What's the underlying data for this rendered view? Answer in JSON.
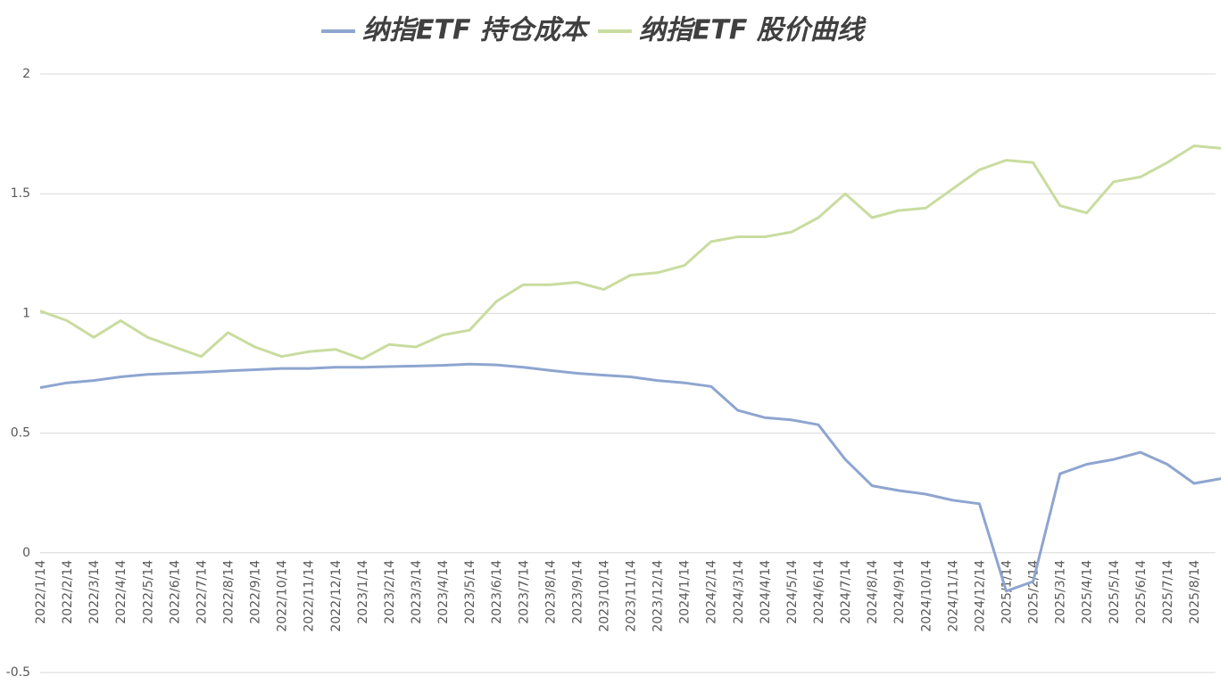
{
  "chart_data": {
    "type": "line",
    "categories": [
      "2022/1/14",
      "2022/2/14",
      "2022/3/14",
      "2022/4/14",
      "2022/5/14",
      "2022/6/14",
      "2022/7/14",
      "2022/8/14",
      "2022/9/14",
      "2022/10/14",
      "2022/11/14",
      "2022/12/14",
      "2023/1/14",
      "2023/2/14",
      "2023/3/14",
      "2023/4/14",
      "2023/5/14",
      "2023/6/14",
      "2023/7/14",
      "2023/8/14",
      "2023/9/14",
      "2023/10/14",
      "2023/11/14",
      "2023/12/14",
      "2024/1/14",
      "2024/2/14",
      "2024/3/14",
      "2024/4/14",
      "2024/5/14",
      "2024/6/14",
      "2024/7/14",
      "2024/8/14",
      "2024/9/14",
      "2024/10/14",
      "2024/11/14",
      "2024/12/14",
      "2025/1/14",
      "2025/2/14",
      "2025/3/14",
      "2025/4/14",
      "2025/5/14",
      "2025/6/14",
      "2025/7/14",
      "2025/8/14",
      null
    ],
    "series": [
      {
        "name": "纳指ETF 持仓成本",
        "color": "#8ea5cf",
        "values": [
          0.69,
          0.71,
          0.72,
          0.735,
          0.745,
          0.75,
          0.755,
          0.76,
          0.765,
          0.77,
          0.77,
          0.775,
          0.775,
          0.778,
          0.78,
          0.783,
          0.788,
          0.785,
          0.775,
          0.762,
          0.75,
          0.742,
          0.735,
          0.72,
          0.71,
          0.695,
          0.595,
          0.565,
          0.555,
          0.535,
          0.39,
          0.28,
          0.26,
          0.245,
          0.22,
          0.205,
          -0.16,
          -0.12,
          0.33,
          0.37,
          0.39,
          0.42,
          0.37,
          0.29,
          0.31
        ]
      },
      {
        "name": "纳指ETF 股价曲线",
        "color": "#c9dc9f",
        "values": [
          1.01,
          0.97,
          0.9,
          0.97,
          0.9,
          0.86,
          0.82,
          0.92,
          0.86,
          0.82,
          0.84,
          0.85,
          0.81,
          0.87,
          0.86,
          0.91,
          0.93,
          1.05,
          1.12,
          1.12,
          1.13,
          1.1,
          1.16,
          1.17,
          1.2,
          1.3,
          1.32,
          1.32,
          1.34,
          1.4,
          1.5,
          1.4,
          1.43,
          1.44,
          1.52,
          1.6,
          1.64,
          1.63,
          1.45,
          1.42,
          1.55,
          1.57,
          1.63,
          1.7,
          1.69
        ]
      }
    ],
    "ylim": [
      -0.5,
      2
    ],
    "yticks": [
      -0.5,
      0,
      0.5,
      1,
      1.5,
      2
    ],
    "grid": true,
    "legend": "top"
  }
}
